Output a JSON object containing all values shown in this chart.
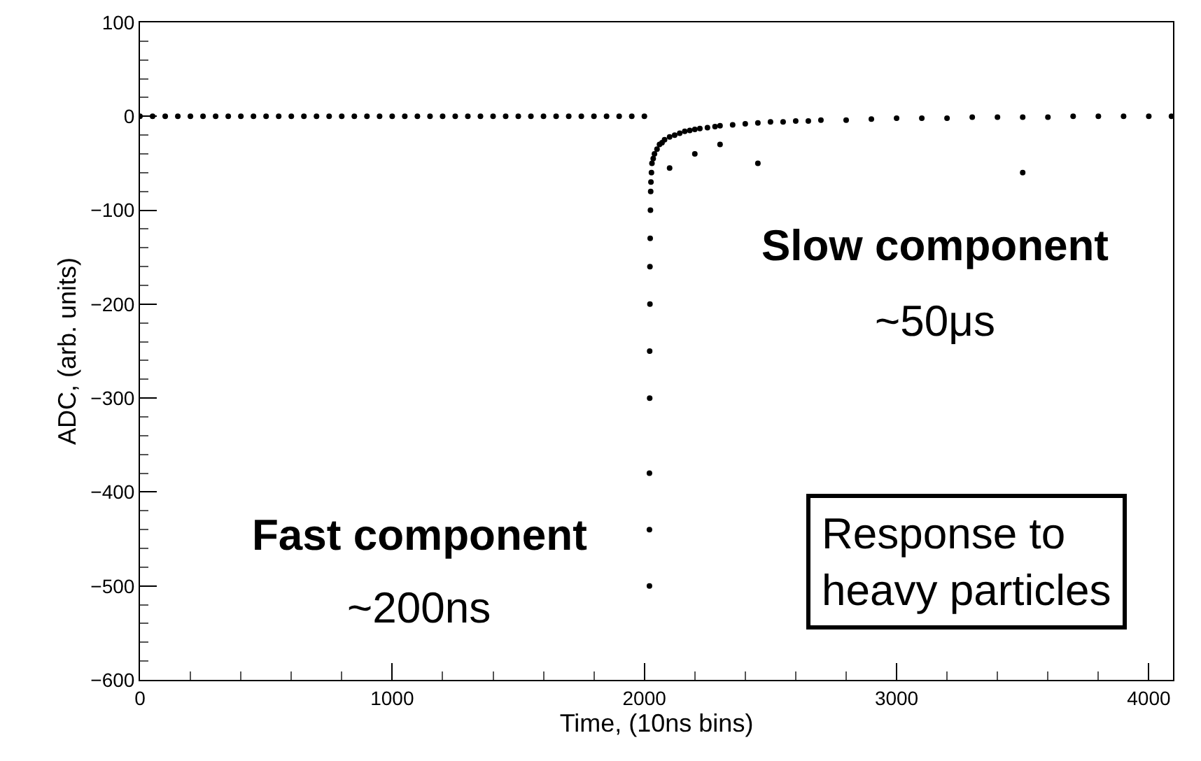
{
  "chart_data": {
    "type": "scatter",
    "xlabel": "Time, (10ns bins)",
    "ylabel": "ADC, (arb. units)",
    "annotations": [
      "Fast component",
      "~200ns",
      "Slow component",
      "~50μs",
      "Response to\nheavy particles"
    ],
    "xlim": [
      0,
      4096
    ],
    "xticks": [
      0,
      1000,
      2000,
      3000,
      4000
    ],
    "ylim": [
      -600,
      100
    ],
    "yticks": [
      -600,
      -500,
      -400,
      -300,
      -200,
      -100,
      0,
      100
    ],
    "grid": false,
    "marker": "circle",
    "series": [
      {
        "color": "#000000",
        "x": [
          0,
          50,
          100,
          150,
          200,
          250,
          300,
          350,
          400,
          450,
          500,
          550,
          600,
          650,
          700,
          750,
          800,
          850,
          900,
          950,
          1000,
          1050,
          1100,
          1150,
          1200,
          1250,
          1300,
          1350,
          1400,
          1450,
          1500,
          1550,
          1600,
          1650,
          1700,
          1750,
          1800,
          1850,
          1900,
          1950,
          2000,
          2020,
          2020,
          2020,
          2021,
          2021,
          2022,
          2022,
          2023,
          2024,
          2025,
          2026,
          2028,
          2030,
          2035,
          2040,
          2050,
          2060,
          2070,
          2080,
          2100,
          2100,
          2120,
          2140,
          2160,
          2180,
          2200,
          2200,
          2220,
          2250,
          2280,
          2300,
          2300,
          2350,
          2400,
          2450,
          2450,
          2500,
          2550,
          2600,
          2650,
          2700,
          2800,
          2900,
          3000,
          3100,
          3200,
          3300,
          3400,
          3500,
          3500,
          3600,
          3700,
          3800,
          3900,
          4000,
          4090
        ],
        "values": [
          0,
          0,
          0,
          0,
          0,
          0,
          0,
          0,
          0,
          0,
          0,
          0,
          0,
          0,
          0,
          0,
          0,
          0,
          0,
          0,
          0,
          0,
          0,
          0,
          0,
          0,
          0,
          0,
          0,
          0,
          0,
          0,
          0,
          0,
          0,
          0,
          0,
          0,
          0,
          0,
          0,
          -500,
          -440,
          -380,
          -300,
          -250,
          -200,
          -160,
          -130,
          -100,
          -80,
          -70,
          -60,
          -50,
          -45,
          -40,
          -35,
          -30,
          -28,
          -25,
          -55,
          -22,
          -20,
          -18,
          -16,
          -15,
          -40,
          -14,
          -13,
          -12,
          -11,
          -30,
          -10,
          -9,
          -8,
          -50,
          -7,
          -6,
          -6,
          -5,
          -5,
          -4,
          -4,
          -3,
          -2,
          -2,
          -2,
          -1,
          -1,
          -60,
          -1,
          -1,
          0,
          0,
          0,
          0,
          0
        ]
      }
    ]
  }
}
